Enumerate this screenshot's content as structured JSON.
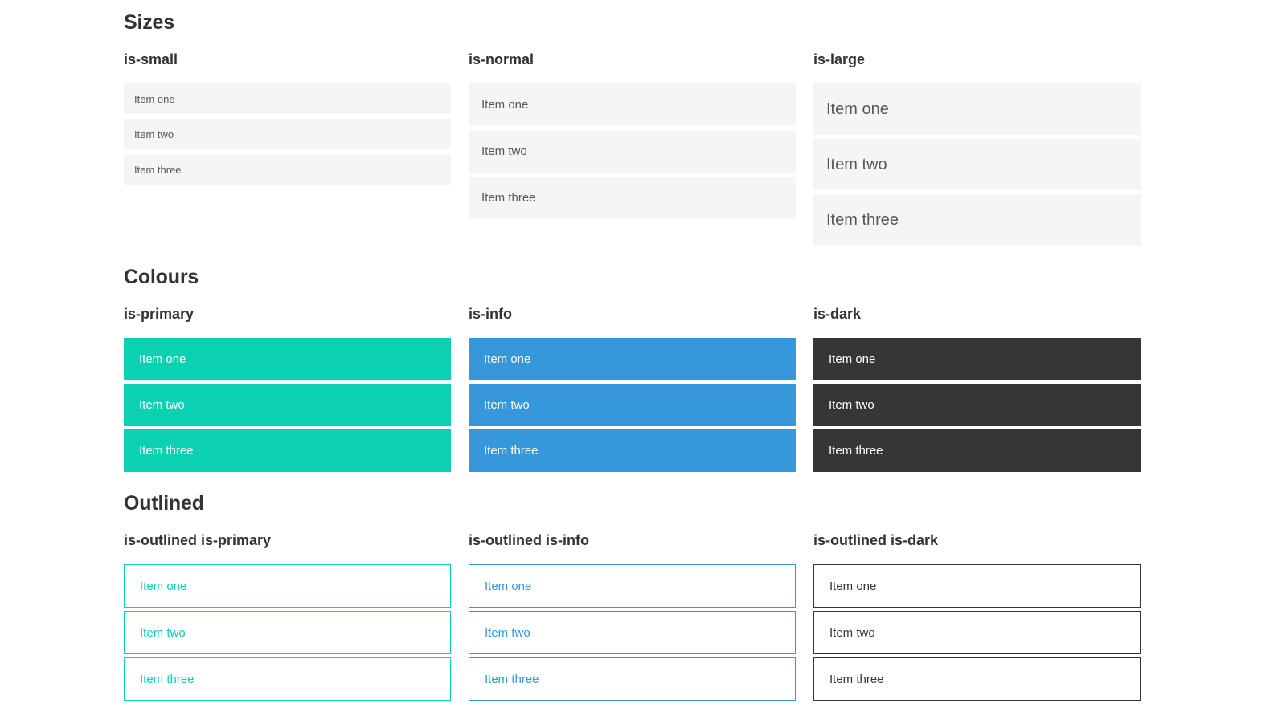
{
  "colors": {
    "primary": "#0bd0b2",
    "info": "#3697db",
    "dark": "#363636",
    "item-bg": "#f5f5f5",
    "item-text": "#575757",
    "heading": "#333333",
    "white": "#ffffff"
  },
  "sections": [
    {
      "title": "Sizes",
      "groups": [
        {
          "label": "is-small",
          "items": [
            "Item one",
            "Item two",
            "Item three"
          ]
        },
        {
          "label": "is-normal",
          "items": [
            "Item one",
            "Item two",
            "Item three"
          ]
        },
        {
          "label": "is-large",
          "items": [
            "Item one",
            "Item two",
            "Item three"
          ]
        }
      ]
    },
    {
      "title": "Colours",
      "groups": [
        {
          "label": "is-primary",
          "items": [
            "Item one",
            "Item two",
            "Item three"
          ]
        },
        {
          "label": "is-info",
          "items": [
            "Item one",
            "Item two",
            "Item three"
          ]
        },
        {
          "label": "is-dark",
          "items": [
            "Item one",
            "Item two",
            "Item three"
          ]
        }
      ]
    },
    {
      "title": "Outlined",
      "groups": [
        {
          "label": "is-outlined is-primary",
          "items": [
            "Item one",
            "Item two",
            "Item three"
          ]
        },
        {
          "label": "is-outlined is-info",
          "items": [
            "Item one",
            "Item two",
            "Item three"
          ]
        },
        {
          "label": "is-outlined is-dark",
          "items": [
            "Item one",
            "Item two",
            "Item three"
          ]
        }
      ]
    }
  ]
}
